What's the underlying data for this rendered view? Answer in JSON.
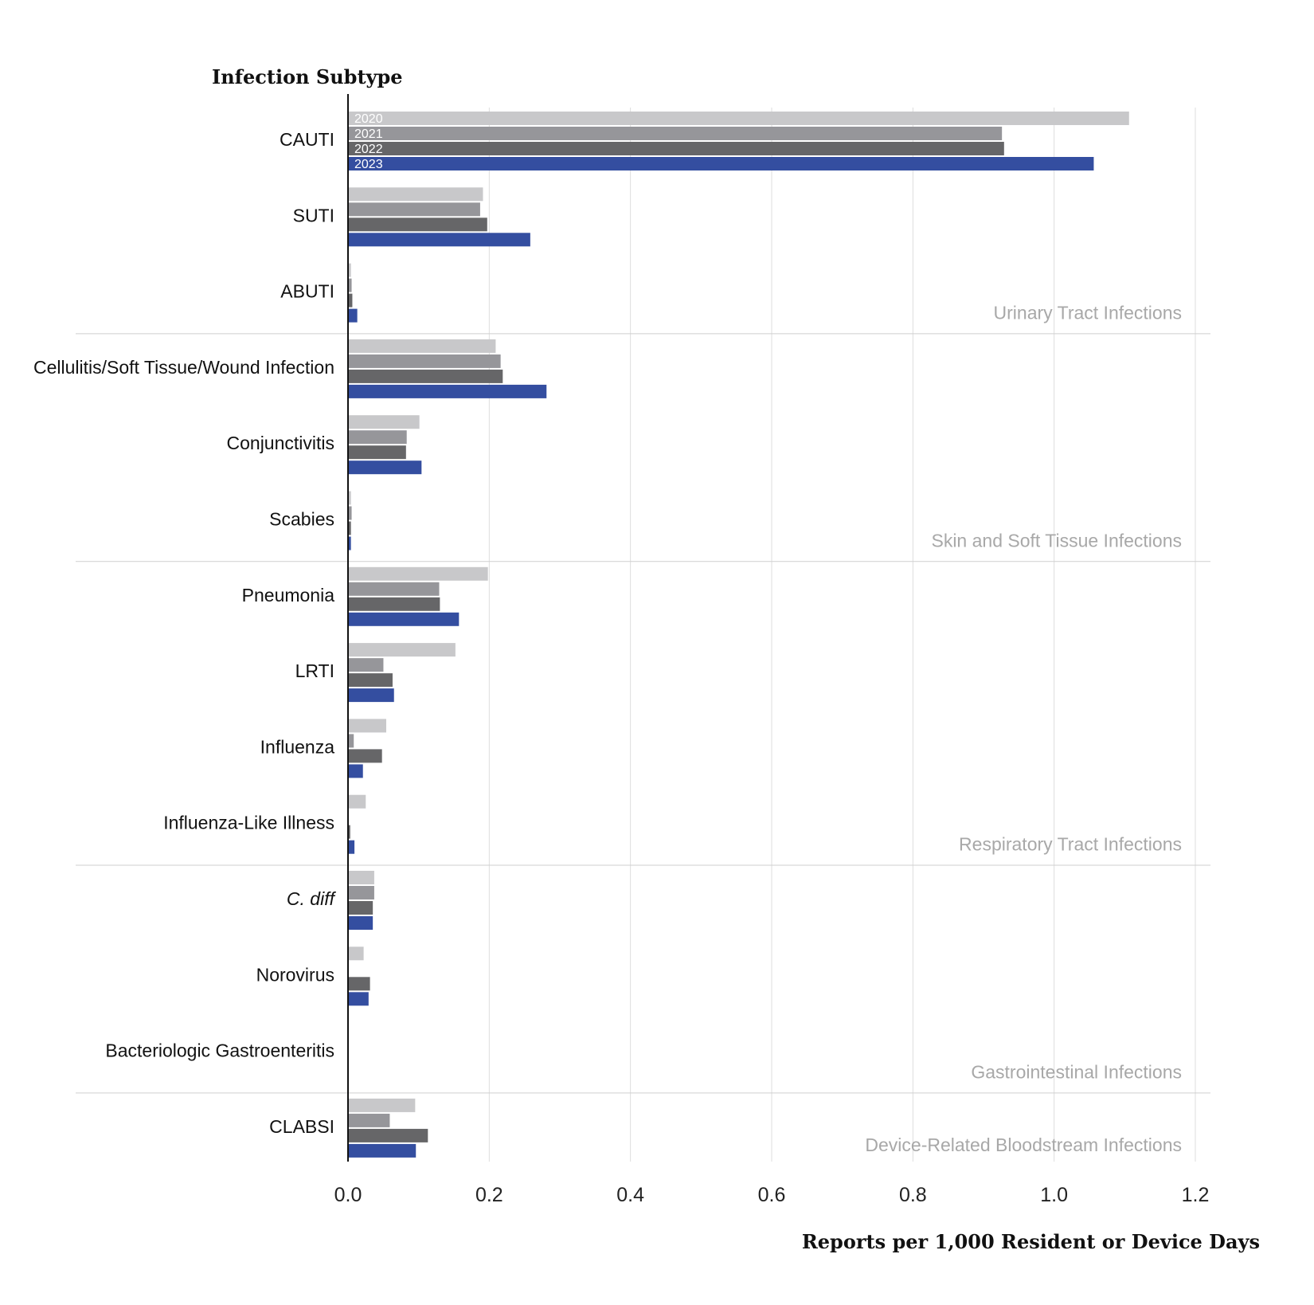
{
  "chart_data": {
    "type": "bar",
    "orientation": "horizontal",
    "ylabel": "Infection Subtype",
    "xlabel": "Reports per 1,000 Resident or Device Days",
    "xlim": [
      0,
      1.2
    ],
    "xticks": [
      "0.0",
      "0.2",
      "0.4",
      "0.6",
      "0.8",
      "1.0",
      "1.2"
    ],
    "grid": true,
    "legend": "inline labels on first category bars",
    "categories": [
      "CAUTI",
      "SUTI",
      "ABUTI",
      "Cellulitis/Soft Tissue/Wound Infection",
      "Conjunctivitis",
      "Scabies",
      "Pneumonia",
      "LRTI",
      "Influenza",
      "Influenza-Like Illness",
      "C. diff",
      "Norovirus",
      "Bacteriologic Gastroenteritis",
      "CLABSI"
    ],
    "italic_categories": [
      "C. diff"
    ],
    "groups": [
      {
        "label": "Urinary Tract Infections",
        "count": 3
      },
      {
        "label": "Skin and Soft Tissue Infections",
        "count": 3
      },
      {
        "label": "Respiratory Tract Infections",
        "count": 4
      },
      {
        "label": "Gastrointestinal Infections",
        "count": 3
      },
      {
        "label": "Device-Related Bloodstream Infections",
        "count": 1
      }
    ],
    "series": [
      {
        "name": "2020",
        "color": "#c8c8ca",
        "values": [
          1.105,
          0.19,
          0.003,
          0.208,
          0.1,
          0.003,
          0.197,
          0.151,
          0.053,
          0.024,
          0.036,
          0.021,
          0.0,
          0.094
        ]
      },
      {
        "name": "2021",
        "color": "#96969a",
        "values": [
          0.925,
          0.186,
          0.004,
          0.215,
          0.082,
          0.004,
          0.128,
          0.049,
          0.007,
          0.0,
          0.036,
          0.0,
          0.0,
          0.058
        ]
      },
      {
        "name": "2022",
        "color": "#666668",
        "values": [
          0.928,
          0.196,
          0.005,
          0.218,
          0.081,
          0.003,
          0.129,
          0.062,
          0.047,
          0.002,
          0.034,
          0.03,
          0.0,
          0.112
        ]
      },
      {
        "name": "2023",
        "color": "#344ea0",
        "values": [
          1.055,
          0.257,
          0.012,
          0.28,
          0.103,
          0.003,
          0.156,
          0.064,
          0.02,
          0.008,
          0.034,
          0.028,
          0.0,
          0.095
        ]
      }
    ]
  }
}
